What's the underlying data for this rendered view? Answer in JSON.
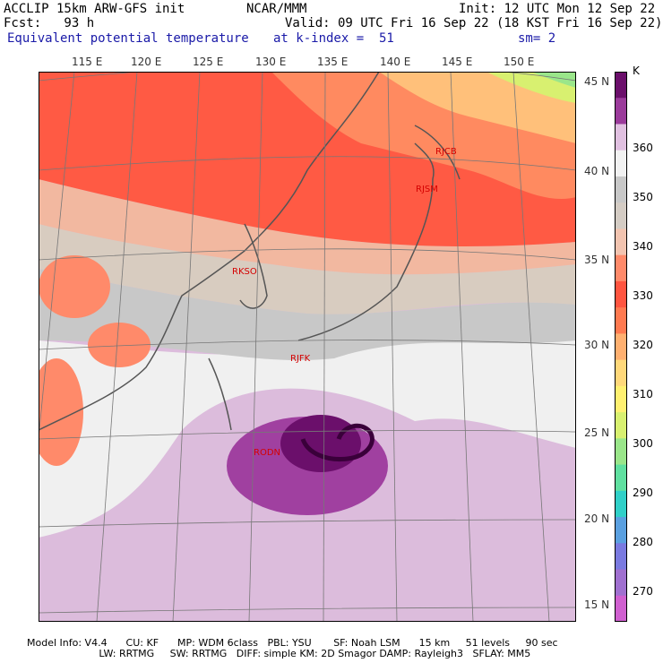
{
  "header": {
    "line1_left": "ACCLIP 15km ARW-GFS init",
    "line1_mid": "NCAR/MMM",
    "line1_right": "Init: 12 UTC Mon 12 Sep 22",
    "line2_left": "Fcst:   93 h",
    "line2_right": "Valid: 09 UTC Fri 16 Sep 22 (18 KST Fri 16 Sep 22)",
    "line3_field": "Equivalent potential temperature",
    "line3_level": "at k-index =  51",
    "line3_smooth": "sm= 2"
  },
  "map": {
    "lon_labels": [
      "115 E",
      "120 E",
      "125 E",
      "130 E",
      "135 E",
      "140 E",
      "145 E",
      "150 E"
    ],
    "lat_labels": [
      "45 N",
      "40 N",
      "35 N",
      "30 N",
      "25 N",
      "20 N",
      "15 N"
    ],
    "stations": [
      {
        "id": "RJCB"
      },
      {
        "id": "RJSM"
      },
      {
        "id": "RKSO"
      },
      {
        "id": "RJFK"
      },
      {
        "id": "RODN"
      }
    ]
  },
  "colorbar": {
    "unit": "K",
    "labels": [
      "360",
      "350",
      "340",
      "330",
      "320",
      "310",
      "300",
      "290",
      "280",
      "270"
    ],
    "colors_top_to_bottom": [
      "#6b0f6b",
      "#9b3b9b",
      "#e0c0e0",
      "#f2f2f2",
      "#c8c8c8",
      "#d4ccc4",
      "#f2c4b0",
      "#ff8a6a",
      "#ff5540",
      "#ff7a50",
      "#ffb070",
      "#ffd87a",
      "#fff070",
      "#d8f070",
      "#9ae68a",
      "#60e0a0",
      "#30d0c8",
      "#5aa0e0",
      "#7a7ae0",
      "#a070d0",
      "#d060d0"
    ]
  },
  "footer": {
    "line1": "Model Info: V4.4      CU: KF      MP: WDM 6class   PBL: YSU       SF: Noah LSM      15 km     51 levels     90 sec",
    "line2": "                       LW: RRTMG     SW: RRTMG   DIFF: simple KM: 2D Smagor DAMP: Rayleigh3   SFLAY: MM5"
  }
}
